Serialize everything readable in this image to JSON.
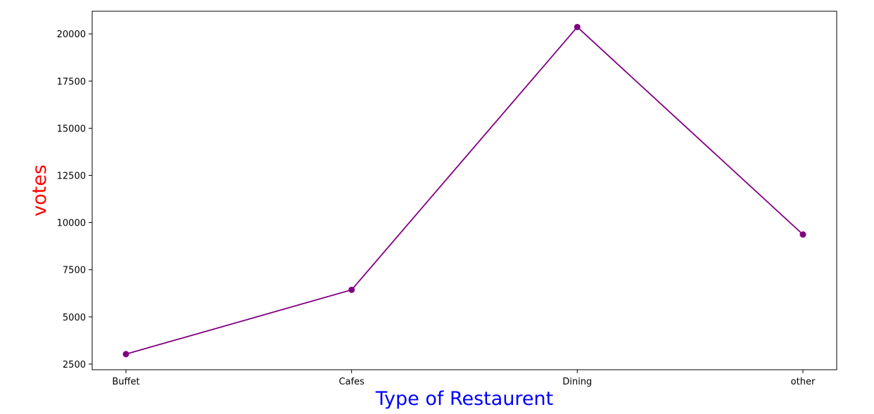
{
  "chart_data": {
    "type": "line",
    "title": "",
    "xlabel": "Type of Restaurent",
    "ylabel": "votes",
    "categories": [
      "Buffet",
      "Cafes",
      "Dining",
      "other"
    ],
    "series": [
      {
        "values": [
          3028,
          6434,
          20363,
          9367
        ],
        "color": "#800080",
        "marker": "circle"
      }
    ],
    "ylim": [
      2200,
      21200
    ],
    "yticks": [
      2500,
      5000,
      7500,
      10000,
      12500,
      15000,
      17500,
      20000
    ],
    "grid": false,
    "legend": "none",
    "colors": {
      "xlabel": "#0000ff",
      "ylabel": "#ff0000",
      "line": "#800080"
    }
  }
}
